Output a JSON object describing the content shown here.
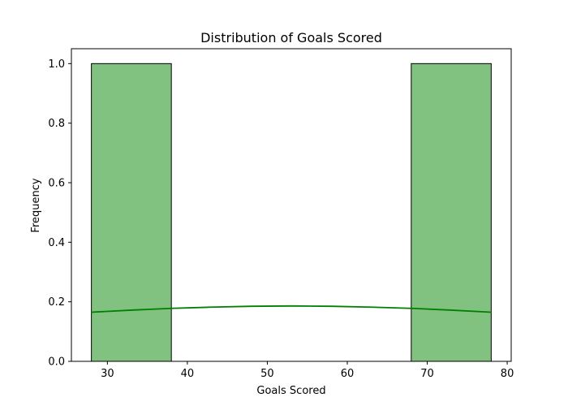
{
  "chart_data": {
    "type": "bar",
    "title": "Distribution of Goals Scored",
    "xlabel": "Goals Scored",
    "ylabel": "Frequency",
    "xlim": [
      25.5,
      80.5
    ],
    "ylim": [
      0,
      1.05
    ],
    "x_ticks": [
      30,
      40,
      50,
      60,
      70,
      80
    ],
    "y_ticks": [
      0.0,
      0.2,
      0.4,
      0.6,
      0.8,
      1.0
    ],
    "y_tick_labels": [
      "0.0",
      "0.2",
      "0.4",
      "0.6",
      "0.8",
      "1.0"
    ],
    "bins": [
      {
        "start": 28,
        "end": 38,
        "value": 1.0
      },
      {
        "start": 68,
        "end": 78,
        "value": 1.0
      }
    ],
    "kde": {
      "x": [
        28,
        33,
        38,
        43,
        48,
        53,
        58,
        63,
        68,
        73,
        78
      ],
      "y": [
        0.165,
        0.172,
        0.178,
        0.182,
        0.185,
        0.186,
        0.185,
        0.182,
        0.178,
        0.172,
        0.165
      ]
    },
    "grid": false,
    "colors": {
      "bar_fill": "#81c281",
      "bar_edge": "#000000",
      "kde_line": "#008000"
    }
  }
}
